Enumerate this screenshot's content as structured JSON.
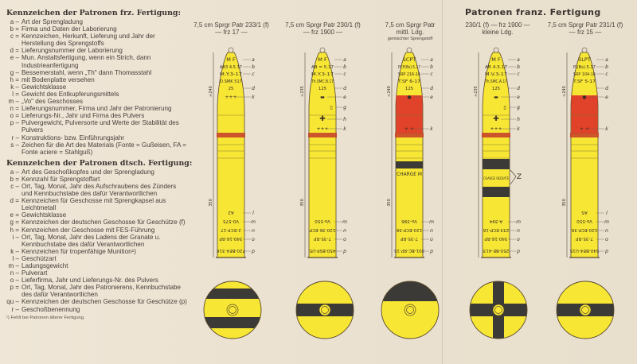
{
  "legend_fr": {
    "title": "Kennzeichen der Patronen frz. Fertigung:",
    "items": [
      {
        "letter": "a",
        "sep": "–",
        "text": "Art der Sprengladung"
      },
      {
        "letter": "b",
        "sep": "=",
        "text": "Firma und Daten der Laborierung"
      },
      {
        "letter": "c",
        "sep": "=",
        "text": "Kennzeichen, Herkunft, Lieferung und Jahr der Herstellung des Sprengstoffs"
      },
      {
        "letter": "d",
        "sep": "=",
        "text": "Lieferungsnummer der Laborierung"
      },
      {
        "letter": "e",
        "sep": "–",
        "text": "Mun. Anstaltsfertigung, wenn ein Strich, dann Industrieanfertigung"
      },
      {
        "letter": "g",
        "sep": "–",
        "text": "Bessemerstahl, wenn „Th\" dann Thomasstahl"
      },
      {
        "letter": "h",
        "sep": "=",
        "text": "mit Bodenplatte versehen"
      },
      {
        "letter": "k",
        "sep": "–",
        "text": "Gewichtsklasse"
      },
      {
        "letter": "l",
        "sep": "=",
        "text": "Gewicht des Entkupferungsmittels"
      },
      {
        "letter": "m",
        "sep": "–",
        "text": "„Vo\" des Geschosses"
      },
      {
        "letter": "n",
        "sep": "=",
        "text": "Lieferungsnummer, Firma und Jahr der Patronierung"
      },
      {
        "letter": "o",
        "sep": "=",
        "text": "Lieferungs-Nr., Jahr und Firma des Pulvers"
      },
      {
        "letter": "p",
        "sep": "–",
        "text": "Pulvergewicht, Pulversorte und Werte der Stabilität des Pulvers"
      },
      {
        "letter": "r",
        "sep": "–",
        "text": "Konstruktions- bzw. Einführungsjahr"
      },
      {
        "letter": "s",
        "sep": "–",
        "text": "Zeichen für die Art des Materials (Fonte = Gußeisen, FA = Fonte aciere = Stahlguß)"
      }
    ]
  },
  "legend_de": {
    "title": "Kennzeichen der Patronen dtsch. Fertigung:",
    "items": [
      {
        "letter": "a",
        "sep": "–",
        "text": "Art des Geschoßkopfes und der Sprengladung"
      },
      {
        "letter": "b",
        "sep": "=",
        "text": "Kennzahl für Sprengstoffart"
      },
      {
        "letter": "c",
        "sep": "–",
        "text": "Ort, Tag, Monat, Jahr des Aufschraubens des Zünders und Kennbuchstabe des dafür Verantwortlichen"
      },
      {
        "letter": "d",
        "sep": "=",
        "text": "Kennzeichen für Geschosse mit Sprengkapsel aus Leichtmetall"
      },
      {
        "letter": "e",
        "sep": "=",
        "text": "Gewichtsklasse"
      },
      {
        "letter": "g",
        "sep": "=",
        "text": "Kennzeichen der deutschen Geschosse für Geschütze (f)"
      },
      {
        "letter": "h",
        "sep": "=",
        "text": "Kennzeichen der Geschosse mit FES-Führung"
      },
      {
        "letter": "i",
        "sep": "–",
        "text": "Ort, Tag, Monat, Jahr des Ladens der Granate u. Kennbuchstabe des dafür Verantwortlichen"
      },
      {
        "letter": "k",
        "sep": "–",
        "text": "Kennzeichen für tropenfähige Munition¹)"
      },
      {
        "letter": "l",
        "sep": "–",
        "text": "Geschützart"
      },
      {
        "letter": "m",
        "sep": "–",
        "text": "Ladungsgewicht"
      },
      {
        "letter": "n",
        "sep": "–",
        "text": "Pulverart"
      },
      {
        "letter": "o",
        "sep": "–",
        "text": "Lieferfirma, Jahr und Lieferungs-Nr. des Pulvers"
      },
      {
        "letter": "p",
        "sep": "=",
        "text": "Ort, Tag, Monat, Jahr des Patronierens, Kennbuchstabe des dafür Verantwortlichen"
      },
      {
        "letter": "qu",
        "sep": "–",
        "text": "Kennzeichen der deutschen Geschosse für Geschütze (p)"
      },
      {
        "letter": "r",
        "sep": "–",
        "text": "Geschoßbenennung"
      }
    ]
  },
  "footnote": "¹) Fehlt bei Patronen älterer Fertigung.",
  "title": "Patronen franz. Fertigung",
  "captions": [
    {
      "line1": "7,5 cm Sprgr Patr 233/1 (f)",
      "line2": "— frz 17 —",
      "sub": ""
    },
    {
      "line1": "7,5 cm Sprgr Patr 230/1 (f)",
      "line2": "— frz 1900 —",
      "sub": ""
    },
    {
      "line1": "7,5 cm Sprgr Patr",
      "line2": "mittl. Ldg.",
      "sub": "gemischter Sprengstoff"
    },
    {
      "line1": "230/1 (f) — frz 1900 —",
      "line2": "kleine Ldg.",
      "sub": ""
    },
    {
      "line1": "7,5 cm Sprgr Patr 231/1 (f)",
      "line2": "— frz 15 —",
      "sub": ""
    }
  ],
  "colors": {
    "shell_yellow": "#f7e634",
    "band_red": "#e0422a",
    "ring_red": "#c8452a",
    "black": "#3b3a36",
    "outline": "#5a4a2a"
  },
  "shells": [
    {
      "top": [
        [
          "M F",
          "a"
        ],
        [
          "AB3 4.5.17",
          "b"
        ],
        [
          "M.Y.3-17",
          "c"
        ],
        [
          "D.SMK 517",
          ""
        ],
        [
          "25",
          "d"
        ]
      ],
      "mid": [
        [
          "+++",
          "k"
        ]
      ],
      "red_body": false,
      "band_text": "",
      "black_bands": 0,
      "side_label": "",
      "bottom": [
        [
          "A2",
          "l"
        ],
        [
          "V0-575",
          "m"
        ],
        [
          "2-ECP-17",
          "n"
        ],
        [
          "340-16-RP",
          "o"
        ],
        [
          "720-BE4-316",
          "p"
        ]
      ],
      "dims": [
        "240",
        "350"
      ],
      "base": "h-bands-two"
    },
    {
      "top": [
        [
          "M F",
          "a"
        ],
        [
          "AB = 5.17",
          "b"
        ],
        [
          "M.Y.3-17",
          "c"
        ],
        [
          "Th.SMC.B.17",
          ""
        ],
        [
          "125",
          "d"
        ]
      ],
      "mid": [
        [
          "▬",
          "e"
        ],
        [
          "▯",
          "g"
        ],
        [
          "✚",
          "h"
        ],
        [
          "+++",
          "k"
        ]
      ],
      "red_body": false,
      "band_text": "",
      "black_bands": 0,
      "side_label": "",
      "bottom": [
        [
          "Vo-550",
          "m"
        ],
        [
          "120-36-ECP",
          "n"
        ],
        [
          "7-35-RP",
          "o"
        ],
        [
          "450-BSP-U5",
          "p"
        ]
      ],
      "dims": [
        "235",
        "350"
      ],
      "base": "h-band"
    },
    {
      "top": [
        [
          "SCPT",
          "a"
        ],
        [
          "PCP(Bs).5.17",
          "b"
        ],
        [
          "SRP 216-16",
          "c"
        ],
        [
          "T.SF 6-17",
          ""
        ],
        [
          "125",
          "d"
        ]
      ],
      "mid": [
        [
          "●",
          "e"
        ],
        [
          "+ +",
          "k"
        ]
      ],
      "red_body": true,
      "band_text": "CHARGE M",
      "black_bands": 1,
      "side_label": "",
      "bottom": [
        [
          "Vo-396",
          "m"
        ],
        [
          "120-ECP-36",
          "n"
        ],
        [
          "7-35-RP",
          "o"
        ],
        [
          "301-BC-RP-15",
          "p"
        ]
      ],
      "dims": [
        "240",
        "350"
      ],
      "base": "top-black"
    },
    {
      "top": [
        [
          "M F",
          "a"
        ],
        [
          "AB 4.5.17",
          "b"
        ],
        [
          "M.V.3-17",
          "c"
        ],
        [
          "Th.SMC.A.17",
          ""
        ],
        [
          "125",
          "d"
        ]
      ],
      "mid": [
        [
          "▬",
          "e"
        ],
        [
          "▯",
          "g"
        ],
        [
          "✚",
          "h"
        ],
        [
          "+++",
          "k"
        ]
      ],
      "red_body": false,
      "band_text": "CHARGE REDUITE",
      "black_bands": 2,
      "side_label": "Z",
      "bottom": [
        [
          "A-394",
          "m"
        ],
        [
          "233-ECP-16",
          "n"
        ],
        [
          "340-16-RP",
          "o"
        ],
        [
          "250-BE-413",
          "p"
        ]
      ],
      "dims": [
        "235",
        ""
      ],
      "base": "cross"
    },
    {
      "top": [
        [
          "SLPT",
          "a"
        ],
        [
          "PI(Bs).5.17",
          "b"
        ],
        [
          "SRP 104-16",
          "c"
        ],
        [
          "T.SF 5-17",
          ""
        ],
        [
          "",
          "d"
        ]
      ],
      "mid": [
        [
          "●",
          "e"
        ],
        [
          "+ +",
          "k"
        ]
      ],
      "red_body": true,
      "band_text": "",
      "black_bands": 0,
      "side_label": "",
      "bottom": [
        [
          "AS",
          "l"
        ],
        [
          "Vo-550",
          "m"
        ],
        [
          "120-ECP-36",
          "n"
        ],
        [
          "7-35-RP",
          "o"
        ],
        [
          "540-BE4-U15",
          "p"
        ]
      ],
      "dims": [
        "240",
        "350"
      ],
      "base": "h-band"
    }
  ]
}
